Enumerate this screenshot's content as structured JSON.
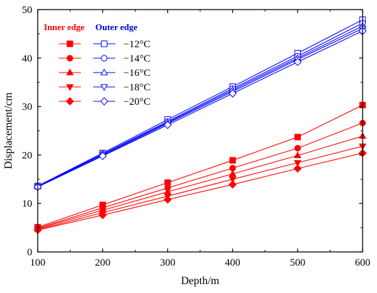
{
  "chart_data": {
    "type": "line",
    "xlabel": "Depth/m",
    "ylabel": "Displacement/cm",
    "xlim": [
      100,
      600
    ],
    "ylim": [
      0,
      50
    ],
    "xticks": [
      100,
      200,
      300,
      400,
      500,
      600
    ],
    "yticks": [
      0,
      10,
      20,
      30,
      40,
      50
    ],
    "grid": false,
    "legend_position": "top-left",
    "legend_groups": [
      "Inner edge",
      "Outer edge"
    ],
    "colors": {
      "inner": "#ff0000",
      "outer": "#0000ff",
      "inner_header": "#ff0000",
      "outer_header": "#0000cc"
    },
    "x": [
      100,
      200,
      300,
      400,
      500,
      600
    ],
    "series": [
      {
        "name": "−12°C",
        "marker": "square",
        "inner": [
          5.1,
          9.7,
          14.3,
          18.9,
          23.7,
          30.3
        ],
        "outer": [
          13.6,
          20.4,
          27.3,
          34.1,
          41.0,
          47.9
        ]
      },
      {
        "name": "−14°C",
        "marker": "circle",
        "inner": [
          4.9,
          9.1,
          13.2,
          17.3,
          21.4,
          26.6
        ],
        "outer": [
          13.5,
          20.2,
          26.9,
          33.7,
          40.4,
          47.2
        ]
      },
      {
        "name": "−16°C",
        "marker": "triangle-up",
        "inner": [
          4.8,
          8.6,
          12.4,
          16.1,
          19.9,
          23.9
        ],
        "outer": [
          13.5,
          20.1,
          26.7,
          33.4,
          40.0,
          46.6
        ]
      },
      {
        "name": "−18°C",
        "marker": "triangle-down",
        "inner": [
          4.6,
          8.1,
          11.5,
          15.0,
          18.4,
          21.8
        ],
        "outer": [
          13.4,
          19.9,
          26.5,
          33.1,
          39.7,
          46.1
        ]
      },
      {
        "name": "−20°C",
        "marker": "diamond",
        "inner": [
          4.5,
          7.6,
          10.8,
          13.9,
          17.2,
          20.4
        ],
        "outer": [
          13.4,
          19.8,
          26.2,
          32.7,
          39.2,
          45.6
        ]
      }
    ]
  }
}
